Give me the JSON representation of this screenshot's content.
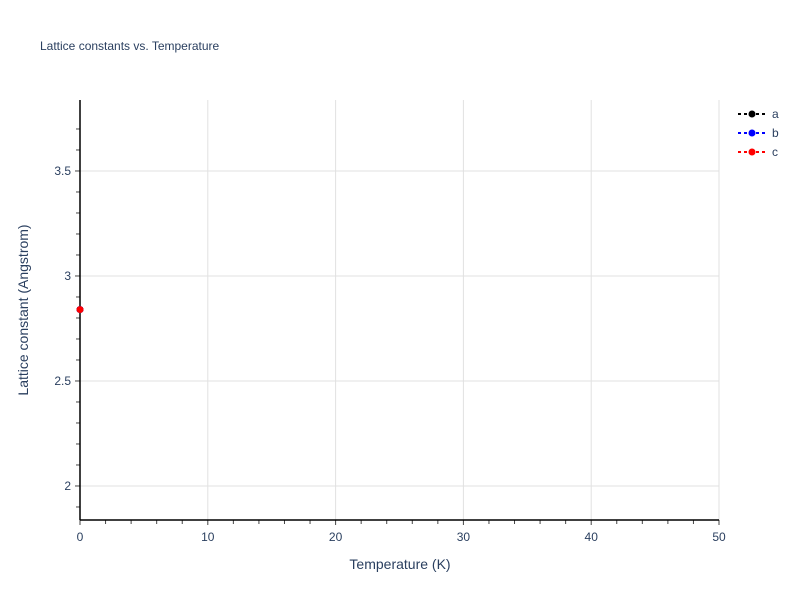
{
  "chart_data": {
    "type": "scatter",
    "mode": "lines+markers",
    "title": "Lattice constants vs. Temperature",
    "xlabel": "Temperature (K)",
    "ylabel": "Lattice constant (Angstrom)",
    "xlim": [
      0,
      50
    ],
    "ylim": [
      1.838,
      3.838
    ],
    "xticks": [
      0,
      10,
      20,
      30,
      40,
      50
    ],
    "yticks": [
      2,
      2.5,
      3,
      3.5
    ],
    "xtick_labels": [
      "0",
      "10",
      "20",
      "30",
      "40",
      "50"
    ],
    "ytick_labels": [
      "2",
      "2.5",
      "3",
      "3.5"
    ],
    "grid": true,
    "legend_position": "top-right",
    "series": [
      {
        "name": "a",
        "color": "#000000",
        "x": [
          0
        ],
        "y": [
          2.84
        ]
      },
      {
        "name": "b",
        "color": "#0000ff",
        "x": [
          0
        ],
        "y": [
          2.84
        ]
      },
      {
        "name": "c",
        "color": "#ff0000",
        "x": [
          0
        ],
        "y": [
          2.84
        ]
      }
    ]
  }
}
